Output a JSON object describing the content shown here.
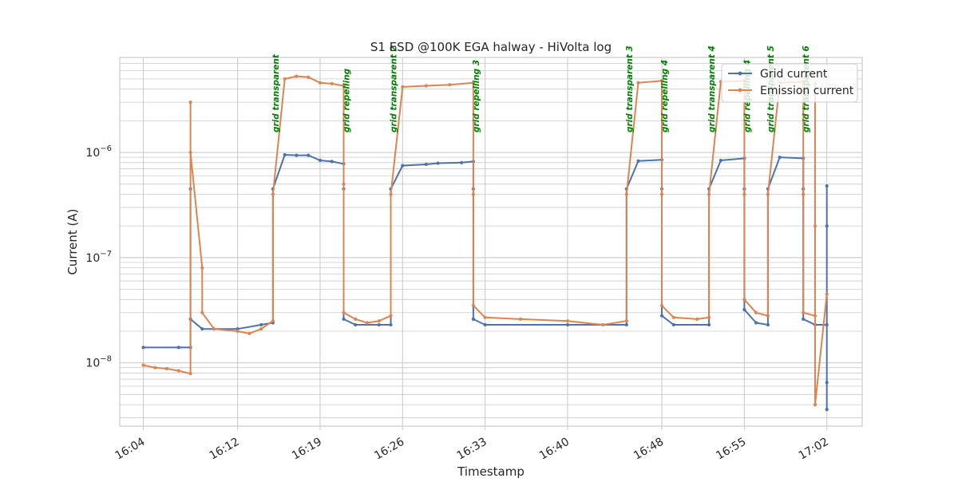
{
  "chart_data": {
    "type": "line",
    "title": "S1 ESD @100K EGA halway - HiVolta log",
    "xlabel": "Timestamp",
    "ylabel": "Current (A)",
    "x_scale": "time",
    "y_scale": "log",
    "xlim": [
      "16:02",
      "17:05"
    ],
    "ylim": [
      2.5e-09,
      8e-06
    ],
    "x_tick_labels": [
      "16:04",
      "16:12",
      "16:19",
      "16:26",
      "16:33",
      "16:40",
      "16:48",
      "16:55",
      "17:02"
    ],
    "y_tick_values": [
      1e-08,
      1e-07,
      1e-06
    ],
    "grid": true,
    "legend_position": "top-right",
    "series": [
      {
        "name": "Grid current",
        "color": "#4c72b0",
        "points": [
          [
            "16:04",
            1.4e-08
          ],
          [
            "16:07",
            1.4e-08
          ],
          [
            "16:08",
            1.4e-08
          ],
          [
            "16:08",
            4.5e-07
          ],
          [
            "16:08",
            2.6e-08
          ],
          [
            "16:09",
            2.1e-08
          ],
          [
            "16:12",
            2.1e-08
          ],
          [
            "16:14",
            2.3e-08
          ],
          [
            "16:15",
            2.4e-08
          ],
          [
            "16:15",
            4.5e-07
          ],
          [
            "16:16",
            9.5e-07
          ],
          [
            "16:17",
            9.4e-07
          ],
          [
            "16:18",
            9.4e-07
          ],
          [
            "16:19",
            8.4e-07
          ],
          [
            "16:20",
            8.2e-07
          ],
          [
            "16:21",
            7.8e-07
          ],
          [
            "16:21",
            4.5e-07
          ],
          [
            "16:21",
            2.6e-08
          ],
          [
            "16:22",
            2.3e-08
          ],
          [
            "16:24",
            2.3e-08
          ],
          [
            "16:25",
            2.3e-08
          ],
          [
            "16:25",
            4.5e-07
          ],
          [
            "16:26",
            7.5e-07
          ],
          [
            "16:28",
            7.7e-07
          ],
          [
            "16:29",
            7.9e-07
          ],
          [
            "16:31",
            8e-07
          ],
          [
            "16:32",
            8.2e-07
          ],
          [
            "16:32",
            4.5e-07
          ],
          [
            "16:32",
            2.6e-08
          ],
          [
            "16:33",
            2.3e-08
          ],
          [
            "16:40",
            2.3e-08
          ],
          [
            "16:45",
            2.3e-08
          ],
          [
            "16:45",
            4.5e-07
          ],
          [
            "16:46",
            8.3e-07
          ],
          [
            "16:48",
            8.5e-07
          ],
          [
            "16:48",
            4.5e-07
          ],
          [
            "16:48",
            2.8e-08
          ],
          [
            "16:49",
            2.3e-08
          ],
          [
            "16:52",
            2.3e-08
          ],
          [
            "16:52",
            4.5e-07
          ],
          [
            "16:53",
            8.4e-07
          ],
          [
            "16:55",
            8.8e-07
          ],
          [
            "16:55",
            4.5e-07
          ],
          [
            "16:55",
            3.2e-08
          ],
          [
            "16:56",
            2.4e-08
          ],
          [
            "16:57",
            2.3e-08
          ],
          [
            "16:57",
            4.5e-07
          ],
          [
            "16:58",
            9e-07
          ],
          [
            "17:00",
            8.8e-07
          ],
          [
            "17:00",
            4.5e-07
          ],
          [
            "17:00",
            2.6e-08
          ],
          [
            "17:01",
            2.3e-08
          ],
          [
            "17:02",
            2.3e-08
          ],
          [
            "17:02",
            3.6e-09
          ],
          [
            "17:02",
            2e-07
          ],
          [
            "17:02",
            4.8e-07
          ],
          [
            "17:02",
            6.5e-09
          ]
        ]
      },
      {
        "name": "Emission current",
        "color": "#dd8452",
        "points": [
          [
            "16:04",
            9.5e-09
          ],
          [
            "16:05",
            9e-09
          ],
          [
            "16:06",
            8.8e-09
          ],
          [
            "16:07",
            8.4e-09
          ],
          [
            "16:08",
            7.9e-09
          ],
          [
            "16:08",
            3e-06
          ],
          [
            "16:08",
            1e-06
          ],
          [
            "16:09",
            8e-08
          ],
          [
            "16:09",
            3e-08
          ],
          [
            "16:10",
            2.1e-08
          ],
          [
            "16:12",
            2e-08
          ],
          [
            "16:13",
            1.9e-08
          ],
          [
            "16:14",
            2.1e-08
          ],
          [
            "16:15",
            2.5e-08
          ],
          [
            "16:15",
            4e-07
          ],
          [
            "16:16",
            5e-06
          ],
          [
            "16:17",
            5.3e-06
          ],
          [
            "16:18",
            5.2e-06
          ],
          [
            "16:19",
            4.6e-06
          ],
          [
            "16:20",
            4.5e-06
          ],
          [
            "16:21",
            4.3e-06
          ],
          [
            "16:21",
            5e-07
          ],
          [
            "16:21",
            3e-08
          ],
          [
            "16:22",
            2.6e-08
          ],
          [
            "16:23",
            2.4e-08
          ],
          [
            "16:24",
            2.5e-08
          ],
          [
            "16:25",
            2.8e-08
          ],
          [
            "16:25",
            4e-07
          ],
          [
            "16:26",
            4.2e-06
          ],
          [
            "16:28",
            4.3e-06
          ],
          [
            "16:30",
            4.4e-06
          ],
          [
            "16:32",
            4.6e-06
          ],
          [
            "16:32",
            4e-07
          ],
          [
            "16:32",
            3.5e-08
          ],
          [
            "16:33",
            2.7e-08
          ],
          [
            "16:36",
            2.6e-08
          ],
          [
            "16:40",
            2.5e-08
          ],
          [
            "16:43",
            2.3e-08
          ],
          [
            "16:45",
            2.5e-08
          ],
          [
            "16:45",
            4e-07
          ],
          [
            "16:46",
            4.6e-06
          ],
          [
            "16:48",
            4.8e-06
          ],
          [
            "16:48",
            4e-07
          ],
          [
            "16:48",
            3.5e-08
          ],
          [
            "16:49",
            2.7e-08
          ],
          [
            "16:51",
            2.6e-08
          ],
          [
            "16:52",
            2.7e-08
          ],
          [
            "16:52",
            4e-07
          ],
          [
            "16:53",
            4.7e-06
          ],
          [
            "16:55",
            4.8e-06
          ],
          [
            "16:55",
            4e-07
          ],
          [
            "16:55",
            4e-08
          ],
          [
            "16:56",
            3e-08
          ],
          [
            "16:57",
            2.8e-08
          ],
          [
            "16:57",
            4e-07
          ],
          [
            "16:58",
            4.6e-06
          ],
          [
            "17:00",
            4.7e-06
          ],
          [
            "17:00",
            4e-07
          ],
          [
            "17:00",
            3e-08
          ],
          [
            "17:01",
            2.8e-08
          ],
          [
            "17:01",
            4.5e-06
          ],
          [
            "17:01",
            2e-07
          ],
          [
            "17:01",
            4e-09
          ],
          [
            "17:02",
            4.5e-08
          ]
        ]
      }
    ],
    "annotations": [
      {
        "label": "grid transparent",
        "time": "16:15",
        "color": "#008000"
      },
      {
        "label": "grid repelling",
        "time": "16:21",
        "color": "#008000"
      },
      {
        "label": "grid transparent 2",
        "time": "16:25",
        "color": "#008000"
      },
      {
        "label": "grid repelling 3",
        "time": "16:32",
        "color": "#008000"
      },
      {
        "label": "grid transparent 3",
        "time": "16:45",
        "color": "#008000"
      },
      {
        "label": "grid repelling 4",
        "time": "16:48",
        "color": "#008000"
      },
      {
        "label": "grid transparent 4",
        "time": "16:52",
        "color": "#008000"
      },
      {
        "label": "grid repelling 4",
        "time": "16:55",
        "color": "#008000"
      },
      {
        "label": "grid transparent 5",
        "time": "16:57",
        "color": "#008000"
      },
      {
        "label": "grid transparent 6",
        "time": "17:00",
        "color": "#008000"
      }
    ]
  }
}
